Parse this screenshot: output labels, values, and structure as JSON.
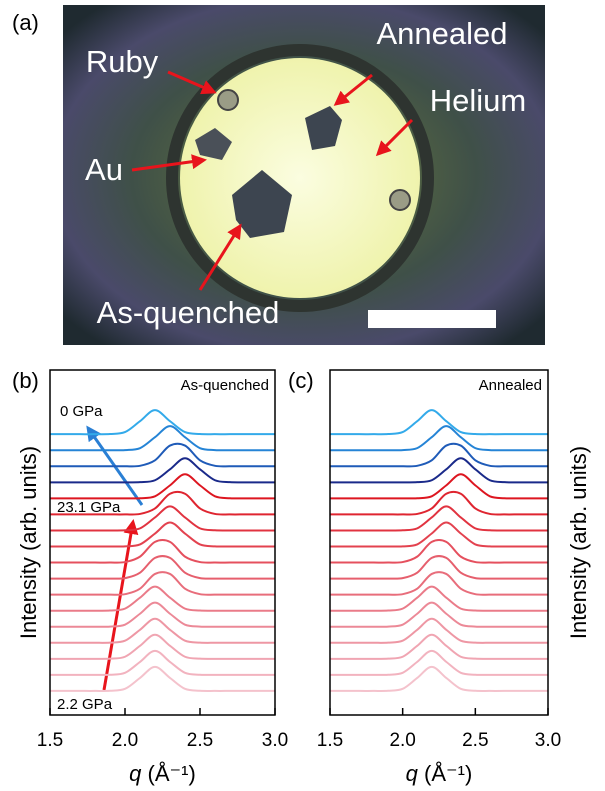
{
  "photo": {
    "panel_label": "(a)",
    "labels": [
      "Ruby",
      "Annealed",
      "Helium",
      "Au",
      "As-quenched"
    ]
  },
  "chart_data": [
    {
      "type": "line",
      "panel_label": "(b)",
      "title": "As-quenched",
      "annotations": [
        "0 GPa",
        "23.1 GPa",
        "2.2 GPa"
      ],
      "x_label": {
        "symbol": "q",
        "unit": "(Å⁻¹)"
      },
      "y_label": "Intensity (arb. units)",
      "xlim": [
        1.5,
        3.0
      ],
      "xticks": [
        1.5,
        {
          "value": 2,
          "label": "2.0"
        },
        2.5,
        {
          "value": 3,
          "label": "3.0"
        }
      ],
      "ylim": [
        -1,
        20.5
      ],
      "x": [
        1.5,
        1.6,
        1.7,
        1.8,
        1.9,
        2.0,
        2.1,
        2.2,
        2.3,
        2.4,
        2.5,
        2.6,
        2.7,
        2.8,
        2.9,
        3.0
      ],
      "series": [
        {
          "color": "#f4c2cc",
          "values": [
            0.5,
            0.5,
            0.5,
            0.5,
            0.51,
            0.63,
            1.31,
            2,
            1.31,
            0.63,
            0.51,
            0.5,
            0.5,
            0.5,
            0.5,
            0.5
          ]
        },
        {
          "color": "#f2b3bf",
          "values": [
            1.5,
            1.5,
            1.5,
            1.5,
            1.51,
            1.63,
            2.31,
            3,
            2.31,
            1.63,
            1.51,
            1.5,
            1.5,
            1.5,
            1.5,
            1.5
          ]
        },
        {
          "color": "#f0a5b2",
          "values": [
            2.5,
            2.5,
            2.5,
            2.5,
            2.51,
            2.63,
            3.31,
            4,
            3.31,
            2.63,
            2.51,
            2.5,
            2.5,
            2.5,
            2.5,
            2.5
          ]
        },
        {
          "color": "#ee97a4",
          "values": [
            3.5,
            3.5,
            3.5,
            3.5,
            3.51,
            3.63,
            4.31,
            5,
            4.31,
            3.63,
            3.51,
            3.5,
            3.5,
            3.5,
            3.5,
            3.5
          ]
        },
        {
          "color": "#ec8997",
          "values": [
            4.5,
            4.5,
            4.5,
            4.5,
            4.51,
            4.63,
            5.31,
            6,
            5.31,
            4.63,
            4.51,
            4.5,
            4.5,
            4.5,
            4.5,
            4.5
          ]
        },
        {
          "color": "#ea7b89",
          "values": [
            5.5,
            5.5,
            5.5,
            5.5,
            5.51,
            5.63,
            6.31,
            7,
            6.31,
            5.63,
            5.51,
            5.5,
            5.5,
            5.5,
            5.5,
            5.5
          ]
        },
        {
          "color": "#e86d7b",
          "values": [
            6.5,
            6.5,
            6.5,
            6.5,
            6.5,
            6.53,
            6.87,
            7.79,
            7.79,
            6.87,
            6.53,
            6.5,
            6.5,
            6.5,
            6.5,
            6.5
          ]
        },
        {
          "color": "#e65f6d",
          "values": [
            7.5,
            7.5,
            7.5,
            7.5,
            7.5,
            7.53,
            7.87,
            8.79,
            8.79,
            7.87,
            7.53,
            7.5,
            7.5,
            7.5,
            7.5,
            7.5
          ]
        },
        {
          "color": "#e5505e",
          "values": [
            8.5,
            8.5,
            8.5,
            8.5,
            8.5,
            8.53,
            8.87,
            9.79,
            9.79,
            8.87,
            8.53,
            8.5,
            8.5,
            8.5,
            8.5,
            8.5
          ]
        },
        {
          "color": "#e3424f",
          "values": [
            9.5,
            9.5,
            9.5,
            9.5,
            9.5,
            9.51,
            9.63,
            10.31,
            11,
            10.31,
            9.63,
            9.51,
            9.5,
            9.5,
            9.5,
            9.5
          ]
        },
        {
          "color": "#e13340",
          "values": [
            10.5,
            10.5,
            10.5,
            10.5,
            10.5,
            10.51,
            10.63,
            11.31,
            12,
            11.31,
            10.63,
            10.51,
            10.5,
            10.5,
            10.5,
            10.5
          ]
        },
        {
          "color": "#df2530",
          "values": [
            11.5,
            11.5,
            11.5,
            11.5,
            11.5,
            11.5,
            11.53,
            11.87,
            12.79,
            12.79,
            11.87,
            11.53,
            11.5,
            11.5,
            11.5,
            11.5
          ]
        },
        {
          "color": "#dd1620",
          "values": [
            12.5,
            12.5,
            12.5,
            12.5,
            12.5,
            12.5,
            12.51,
            12.63,
            13.31,
            14,
            13.31,
            12.63,
            12.51,
            12.5,
            12.5,
            12.5
          ]
        },
        {
          "color": "#1a2a8a",
          "values": [
            13.5,
            13.5,
            13.5,
            13.5,
            13.5,
            13.5,
            13.51,
            13.63,
            14.31,
            15,
            14.31,
            13.63,
            13.51,
            13.5,
            13.5,
            13.5
          ]
        },
        {
          "color": "#1f5bb8",
          "values": [
            14.5,
            14.5,
            14.5,
            14.5,
            14.5,
            14.5,
            14.53,
            14.87,
            15.79,
            15.79,
            14.87,
            14.53,
            14.5,
            14.5,
            14.5,
            14.5
          ]
        },
        {
          "color": "#2584d6",
          "values": [
            15.5,
            15.5,
            15.5,
            15.5,
            15.5,
            15.51,
            15.63,
            16.31,
            17,
            16.31,
            15.63,
            15.51,
            15.5,
            15.5,
            15.5,
            15.5
          ]
        },
        {
          "color": "#33aaea",
          "values": [
            16.5,
            16.5,
            16.5,
            16.5,
            16.51,
            16.63,
            17.31,
            18,
            17.31,
            16.63,
            16.51,
            16.5,
            16.5,
            16.5,
            16.5,
            16.5
          ]
        }
      ]
    },
    {
      "type": "line",
      "panel_label": "(c)",
      "title": "Annealed",
      "x_label": {
        "symbol": "q",
        "unit": "(Å⁻¹)"
      },
      "y_label": "Intensity (arb. units)",
      "xlim": [
        1.5,
        3.0
      ],
      "xticks": [
        1.5,
        {
          "value": 2,
          "label": "2.0"
        },
        2.5,
        {
          "value": 3,
          "label": "3.0"
        }
      ],
      "ylim": [
        -1,
        20.5
      ],
      "x": [
        1.5,
        1.6,
        1.7,
        1.8,
        1.9,
        2.0,
        2.1,
        2.2,
        2.3,
        2.4,
        2.5,
        2.6,
        2.7,
        2.8,
        2.9,
        3.0
      ],
      "series": [
        {
          "color": "#f4c2cc",
          "values": [
            0.5,
            0.5,
            0.5,
            0.5,
            0.51,
            0.63,
            1.31,
            2,
            1.31,
            0.63,
            0.51,
            0.5,
            0.5,
            0.5,
            0.5,
            0.5
          ]
        },
        {
          "color": "#f2b3bf",
          "values": [
            1.5,
            1.5,
            1.5,
            1.5,
            1.51,
            1.63,
            2.31,
            3,
            2.31,
            1.63,
            1.51,
            1.5,
            1.5,
            1.5,
            1.5,
            1.5
          ]
        },
        {
          "color": "#f0a5b2",
          "values": [
            2.5,
            2.5,
            2.5,
            2.5,
            2.51,
            2.63,
            3.31,
            4,
            3.31,
            2.63,
            2.51,
            2.5,
            2.5,
            2.5,
            2.5,
            2.5
          ]
        },
        {
          "color": "#ee97a4",
          "values": [
            3.5,
            3.5,
            3.5,
            3.5,
            3.51,
            3.63,
            4.31,
            5,
            4.31,
            3.63,
            3.51,
            3.5,
            3.5,
            3.5,
            3.5,
            3.5
          ]
        },
        {
          "color": "#ec8997",
          "values": [
            4.5,
            4.5,
            4.5,
            4.5,
            4.51,
            4.63,
            5.31,
            6,
            5.31,
            4.63,
            4.51,
            4.5,
            4.5,
            4.5,
            4.5,
            4.5
          ]
        },
        {
          "color": "#ea7b89",
          "values": [
            5.5,
            5.5,
            5.5,
            5.5,
            5.51,
            5.63,
            6.31,
            7,
            6.31,
            5.63,
            5.51,
            5.5,
            5.5,
            5.5,
            5.5,
            5.5
          ]
        },
        {
          "color": "#e86d7b",
          "values": [
            6.5,
            6.5,
            6.5,
            6.5,
            6.5,
            6.53,
            6.87,
            7.79,
            7.79,
            6.87,
            6.53,
            6.5,
            6.5,
            6.5,
            6.5,
            6.5
          ]
        },
        {
          "color": "#e65f6d",
          "values": [
            7.5,
            7.5,
            7.5,
            7.5,
            7.5,
            7.53,
            7.87,
            8.79,
            8.79,
            7.87,
            7.53,
            7.5,
            7.5,
            7.5,
            7.5,
            7.5
          ]
        },
        {
          "color": "#e5505e",
          "values": [
            8.5,
            8.5,
            8.5,
            8.5,
            8.5,
            8.53,
            8.87,
            9.79,
            9.79,
            8.87,
            8.53,
            8.5,
            8.5,
            8.5,
            8.5,
            8.5
          ]
        },
        {
          "color": "#e3424f",
          "values": [
            9.5,
            9.5,
            9.5,
            9.5,
            9.5,
            9.51,
            9.63,
            10.31,
            11,
            10.31,
            9.63,
            9.51,
            9.5,
            9.5,
            9.5,
            9.5
          ]
        },
        {
          "color": "#e13340",
          "values": [
            10.5,
            10.5,
            10.5,
            10.5,
            10.5,
            10.51,
            10.63,
            11.31,
            12,
            11.31,
            10.63,
            10.51,
            10.5,
            10.5,
            10.5,
            10.5
          ]
        },
        {
          "color": "#df2530",
          "values": [
            11.5,
            11.5,
            11.5,
            11.5,
            11.5,
            11.5,
            11.53,
            11.87,
            12.79,
            12.79,
            11.87,
            11.53,
            11.5,
            11.5,
            11.5,
            11.5
          ]
        },
        {
          "color": "#dd1620",
          "values": [
            12.5,
            12.5,
            12.5,
            12.5,
            12.5,
            12.5,
            12.51,
            12.63,
            13.31,
            14,
            13.31,
            12.63,
            12.51,
            12.5,
            12.5,
            12.5
          ]
        },
        {
          "color": "#1a2a8a",
          "values": [
            13.5,
            13.5,
            13.5,
            13.5,
            13.5,
            13.5,
            13.51,
            13.63,
            14.31,
            15,
            14.31,
            13.63,
            13.51,
            13.5,
            13.5,
            13.5
          ]
        },
        {
          "color": "#1f5bb8",
          "values": [
            14.5,
            14.5,
            14.5,
            14.5,
            14.5,
            14.5,
            14.53,
            14.87,
            15.79,
            15.79,
            14.87,
            14.53,
            14.5,
            14.5,
            14.5,
            14.5
          ]
        },
        {
          "color": "#2584d6",
          "values": [
            15.5,
            15.5,
            15.5,
            15.5,
            15.5,
            15.51,
            15.63,
            16.31,
            17,
            16.31,
            15.63,
            15.51,
            15.5,
            15.5,
            15.5,
            15.5
          ]
        },
        {
          "color": "#33aaea",
          "values": [
            16.5,
            16.5,
            16.5,
            16.5,
            16.51,
            16.63,
            17.31,
            18,
            17.31,
            16.63,
            16.51,
            16.5,
            16.5,
            16.5,
            16.5,
            16.5
          ]
        }
      ]
    }
  ]
}
